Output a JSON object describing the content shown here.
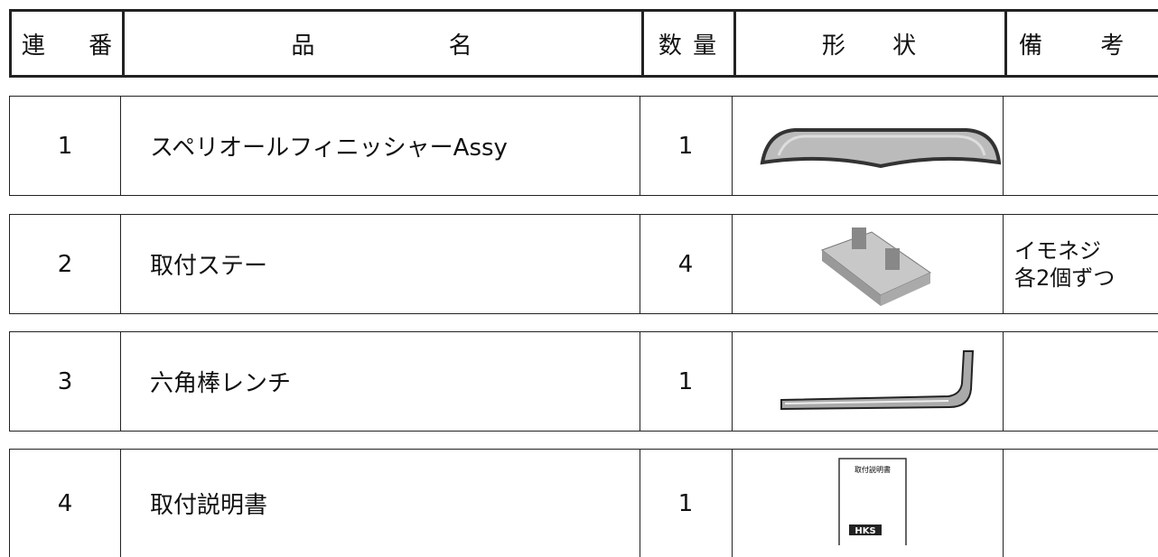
{
  "table": {
    "header": [
      "連 番",
      "品 名",
      "数 量",
      "形 状",
      "備 考"
    ],
    "rows": [
      {
        "no": "1",
        "name": "スペリオールフィニッシャーAssy",
        "qty": "1",
        "remarks": []
      },
      {
        "no": "2",
        "name": "取付ステー",
        "qty": "4",
        "remarks": [
          "イモネジ",
          "各2個ずつ"
        ]
      },
      {
        "no": "3",
        "name": "六角棒レンチ",
        "qty": "1",
        "remarks": []
      },
      {
        "no": "4",
        "name": "取付説明書",
        "qty": "1",
        "remarks": [],
        "image_text": [
          "取付説明書",
          "HKS"
        ]
      }
    ]
  }
}
